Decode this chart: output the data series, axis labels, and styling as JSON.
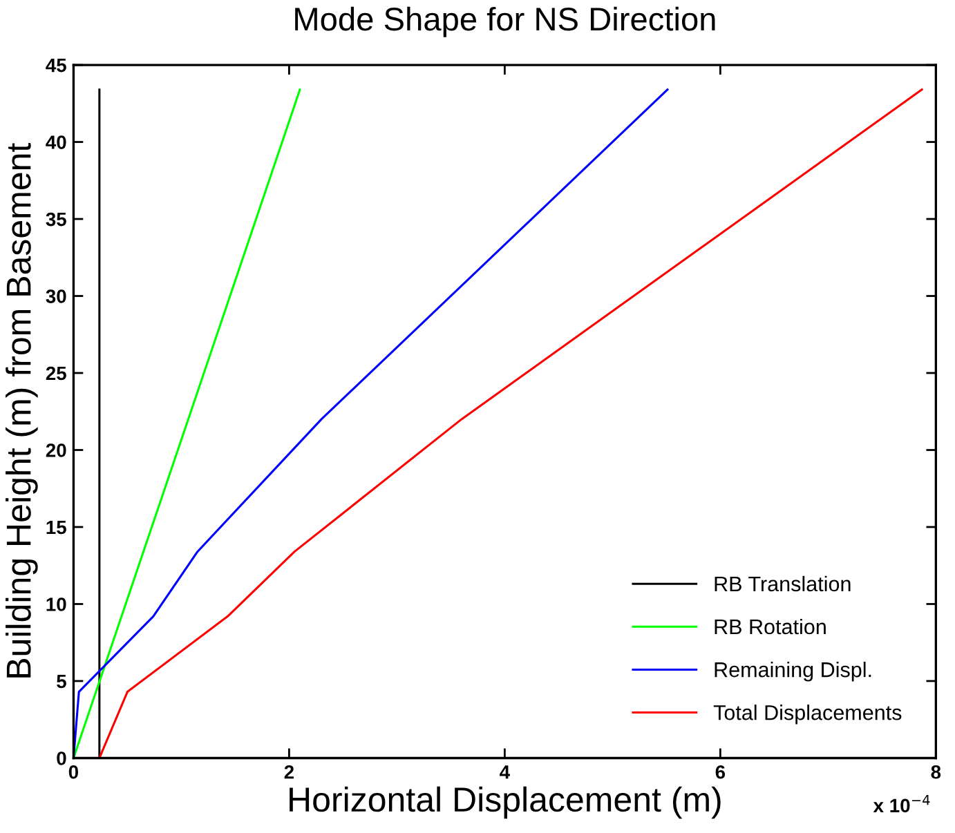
{
  "chart_data": {
    "type": "line",
    "title": "Mode Shape for NS Direction",
    "xlabel": "Horizontal Displacement (m)",
    "ylabel": "Building Height (m) from Basement",
    "annotations": [
      "x 10$^{−4}$"
    ],
    "xlim": [
      0,
      8
    ],
    "xticks": [
      0,
      2,
      4,
      6,
      8
    ],
    "ylim": [
      0,
      45
    ],
    "yticks": [
      0,
      5,
      10,
      15,
      20,
      25,
      30,
      35,
      40,
      45
    ],
    "grid": false,
    "legend": "bottom right",
    "marker": "none",
    "line_style": "solid",
    "series": [
      {
        "name": "RB Translation",
        "color": "#000000",
        "x": [
          0.24,
          0.24
        ],
        "values": [
          0,
          43.4
        ]
      },
      {
        "name": "RB Rotation",
        "color": "#00ff00",
        "x": [
          0,
          2.1
        ],
        "values": [
          0,
          43.4
        ]
      },
      {
        "name": "Remaining Displ.",
        "color": "#0000ff",
        "x": [
          0,
          0.05,
          0.74,
          1.15,
          2.3,
          5.51
        ],
        "values": [
          0,
          4.3,
          9.2,
          13.4,
          22,
          43.4
        ]
      },
      {
        "name": "Total Displacements",
        "color": "#ff0000",
        "x": [
          0.24,
          0.5,
          1.43,
          2.05,
          3.6,
          7.87
        ],
        "values": [
          0,
          4.3,
          9.2,
          13.4,
          22,
          43.4
        ]
      }
    ]
  }
}
